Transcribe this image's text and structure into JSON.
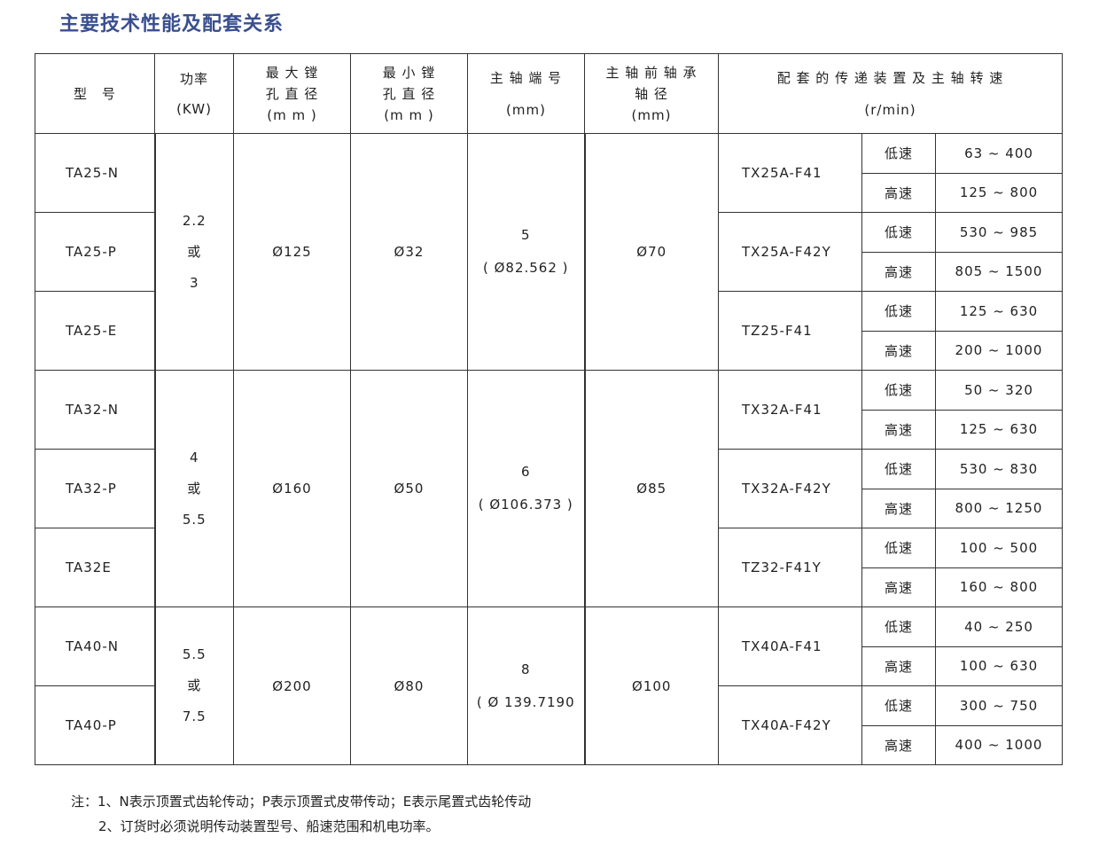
{
  "title": "主要技术性能及配套关系",
  "headers": {
    "model": "型　号",
    "power": [
      "功率",
      "(KW)"
    ],
    "max_bore": [
      "最 大 镗",
      "孔 直 径",
      "(m m )"
    ],
    "min_bore": [
      "最 小 镗",
      "孔 直 径",
      "(m m )"
    ],
    "spindle_end": [
      "主 轴 端 号",
      "(mm)"
    ],
    "bearing": [
      "主 轴 前 轴 承",
      "轴 径",
      "(mm)"
    ],
    "drive": [
      "配 套 的 传 递 装 置 及 主 轴 转 速",
      "(r/min)"
    ]
  },
  "groups": [
    {
      "power": [
        "2.2",
        "或",
        "3"
      ],
      "max_bore": "Ø125",
      "min_bore": "Ø32",
      "spindle_end": [
        "5",
        "( Ø82.562 )"
      ],
      "bearing": "Ø70",
      "models": [
        {
          "model": "TA25-N",
          "drive": "TX25A-F41",
          "low": "63 ~ 400",
          "high": "125 ~ 800"
        },
        {
          "model": "TA25-P",
          "drive": "TX25A-F42Y",
          "low": "530 ~ 985",
          "high": "805 ~ 1500"
        },
        {
          "model": "TA25-E",
          "drive": "TZ25-F41",
          "low": "125 ~ 630",
          "high": "200 ~ 1000"
        }
      ]
    },
    {
      "power": [
        "4",
        "或",
        "5.5"
      ],
      "max_bore": "Ø160",
      "min_bore": "Ø50",
      "spindle_end": [
        "6",
        "( Ø106.373 )"
      ],
      "bearing": "Ø85",
      "models": [
        {
          "model": "TA32-N",
          "drive": "TX32A-F41",
          "low": "50 ~ 320",
          "high": "125 ~ 630"
        },
        {
          "model": "TA32-P",
          "drive": "TX32A-F42Y",
          "low": "530 ~ 830",
          "high": "800 ~ 1250"
        },
        {
          "model": "TA32E",
          "drive": "TZ32-F41Y",
          "low": "100 ~ 500",
          "high": "160 ~ 800"
        }
      ]
    },
    {
      "power": [
        "5.5",
        "或",
        "7.5"
      ],
      "max_bore": "Ø200",
      "min_bore": "Ø80",
      "spindle_end": [
        "8",
        "( Ø 139.7190"
      ],
      "bearing": "Ø100",
      "models": [
        {
          "model": "TA40-N",
          "drive": "TX40A-F41",
          "low": "40 ~ 250",
          "high": "100 ~ 630"
        },
        {
          "model": "TA40-P",
          "drive": "TX40A-F42Y",
          "low": "300 ~ 750",
          "high": "400 ~ 1000"
        }
      ]
    }
  ],
  "speed_labels": {
    "low": "低速",
    "high": "高速"
  },
  "notes": [
    "注：1、N表示顶置式齿轮传动；P表示顶置式皮带传动；E表示尾置式齿轮传动",
    "2、订货时必须说明传动装置型号、船速范围和机电功率。"
  ]
}
